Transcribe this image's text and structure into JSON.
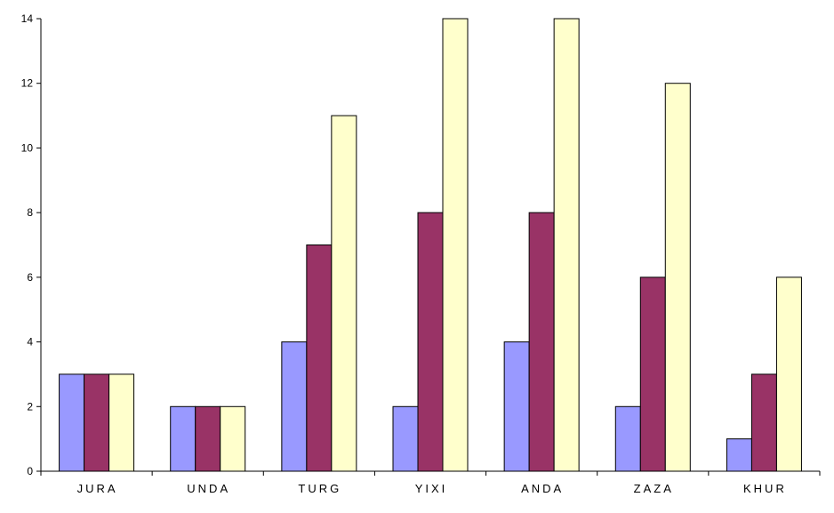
{
  "chart_data": {
    "type": "bar",
    "categories": [
      "JURA",
      "UNDA",
      "TURG",
      "YIXI",
      "ANDA",
      "ZAZA",
      "KHUR"
    ],
    "series": [
      {
        "values": [
          3,
          2,
          4,
          2,
          4,
          2,
          1
        ],
        "color": "#9999ff"
      },
      {
        "values": [
          3,
          2,
          7,
          8,
          8,
          6,
          3
        ],
        "color": "#993366"
      },
      {
        "values": [
          3,
          2,
          11,
          14,
          14,
          12,
          6
        ],
        "color": "#ffffcc"
      }
    ],
    "title": "",
    "xlabel": "",
    "ylabel": "",
    "ylim": [
      0,
      14
    ],
    "yticks": [
      0,
      2,
      4,
      6,
      8,
      10,
      12,
      14
    ],
    "ytick_labels": [
      "0",
      "2",
      "4",
      "6",
      "8",
      "10",
      "12",
      "14"
    ],
    "grid": false,
    "legend": "none"
  }
}
